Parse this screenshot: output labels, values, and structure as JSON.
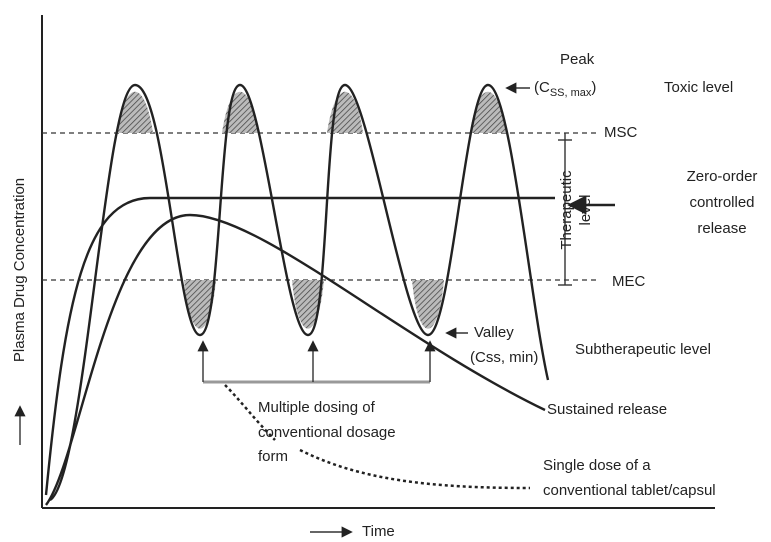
{
  "y_axis_label": "Plasma Drug Concentration",
  "x_axis_label": "Time",
  "peak": {
    "title": "Peak",
    "symbol": "(C",
    "subscript": "SS, max",
    "close": ")"
  },
  "toxic_level": "Toxic level",
  "msc": "MSC",
  "mec": "MEC",
  "therapeutic_level": [
    "Therapeutic",
    "level"
  ],
  "zero_order": [
    "Zero-order",
    "controlled",
    "release"
  ],
  "valley": [
    "Valley",
    "(Css, min)"
  ],
  "subtherapeutic_level": "Subtherapeutic level",
  "sustained_release": "Sustained release",
  "multiple_dosing": [
    "Multiple dosing of",
    "conventional dosage",
    "form"
  ],
  "single_dose": [
    "Single dose of a",
    "conventional tablet/capsul"
  ]
}
